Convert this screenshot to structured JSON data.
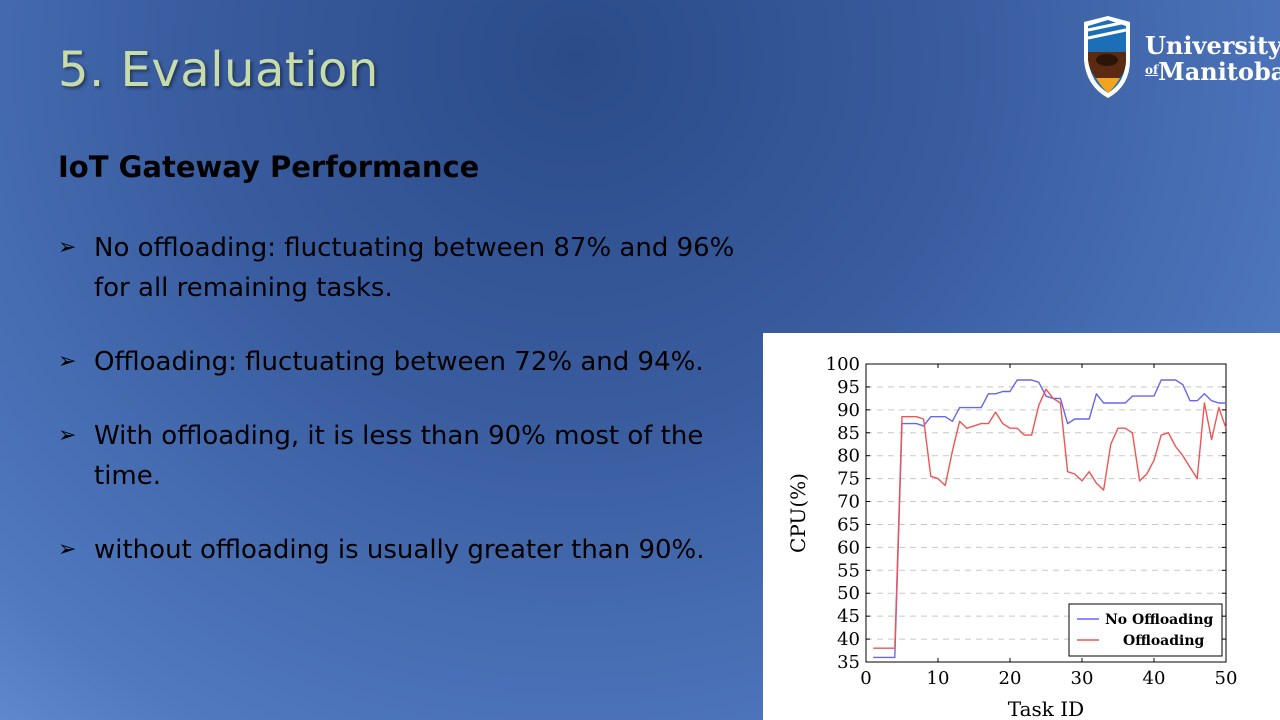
{
  "slide": {
    "title": "5. Evaluation",
    "subtitle": "IoT Gateway Performance",
    "bullets": [
      "No offloading: fluctuating between 87% and 96% for all remaining tasks.",
      "Offloading: fluctuating between 72% and 94%.",
      "With offloading, it is less than 90% most of the time.",
      "without offloading is usually greater than 90%."
    ],
    "bullet_icon": "arrow-right-icon"
  },
  "logo": {
    "line1": "University",
    "of": "of",
    "line2": "Manitoba",
    "icon": "bison-shield-icon"
  },
  "chart_data": {
    "type": "line",
    "title": "",
    "xlabel": "Task ID",
    "ylabel": "CPU(%)",
    "xlim": [
      0,
      50
    ],
    "ylim": [
      35,
      100
    ],
    "xticks": [
      0,
      10,
      20,
      30,
      40,
      50
    ],
    "yticks": [
      35,
      40,
      45,
      50,
      55,
      60,
      65,
      70,
      75,
      80,
      85,
      90,
      95,
      100
    ],
    "grid": "horizontal-dashed",
    "legend_position": "bottom-right",
    "series": [
      {
        "name": "No Offloading",
        "color": "#6666ee",
        "points": [
          [
            1,
            36
          ],
          [
            2,
            36
          ],
          [
            3,
            36
          ],
          [
            4,
            36
          ],
          [
            5,
            87
          ],
          [
            6,
            87
          ],
          [
            7,
            87
          ],
          [
            8,
            86.5
          ],
          [
            9,
            88.5
          ],
          [
            10,
            88.5
          ],
          [
            11,
            88.5
          ],
          [
            12,
            87.5
          ],
          [
            13,
            90.5
          ],
          [
            14,
            90.5
          ],
          [
            15,
            90.5
          ],
          [
            16,
            90.5
          ],
          [
            17,
            93.5
          ],
          [
            18,
            93.5
          ],
          [
            19,
            94
          ],
          [
            20,
            94
          ],
          [
            21,
            96.5
          ],
          [
            22,
            96.5
          ],
          [
            23,
            96.5
          ],
          [
            24,
            96
          ],
          [
            25,
            93
          ],
          [
            26,
            92.5
          ],
          [
            27,
            92.5
          ],
          [
            28,
            87
          ],
          [
            29,
            88
          ],
          [
            30,
            88
          ],
          [
            31,
            88
          ],
          [
            32,
            93.5
          ],
          [
            33,
            91.5
          ],
          [
            34,
            91.5
          ],
          [
            35,
            91.5
          ],
          [
            36,
            91.5
          ],
          [
            37,
            93
          ],
          [
            38,
            93
          ],
          [
            39,
            93
          ],
          [
            40,
            93
          ],
          [
            41,
            96.5
          ],
          [
            42,
            96.5
          ],
          [
            43,
            96.5
          ],
          [
            44,
            95.5
          ],
          [
            45,
            92
          ],
          [
            46,
            92
          ],
          [
            47,
            93.5
          ],
          [
            48,
            92
          ],
          [
            49,
            91.5
          ],
          [
            50,
            91.5
          ]
        ]
      },
      {
        "name": "Offloading",
        "color": "#ee5555",
        "points": [
          [
            1,
            38
          ],
          [
            2,
            38
          ],
          [
            3,
            38
          ],
          [
            4,
            38
          ],
          [
            5,
            88.5
          ],
          [
            6,
            88.5
          ],
          [
            7,
            88.5
          ],
          [
            8,
            88
          ],
          [
            9,
            75.5
          ],
          [
            10,
            75
          ],
          [
            11,
            73.5
          ],
          [
            12,
            81
          ],
          [
            13,
            87.5
          ],
          [
            14,
            86
          ],
          [
            15,
            86.5
          ],
          [
            16,
            87
          ],
          [
            17,
            87
          ],
          [
            18,
            89.5
          ],
          [
            19,
            87
          ],
          [
            20,
            86
          ],
          [
            21,
            86
          ],
          [
            22,
            84.5
          ],
          [
            23,
            84.5
          ],
          [
            24,
            91
          ],
          [
            25,
            94.5
          ],
          [
            26,
            92.5
          ],
          [
            27,
            91.5
          ],
          [
            28,
            76.5
          ],
          [
            29,
            76
          ],
          [
            30,
            74.5
          ],
          [
            31,
            76.5
          ],
          [
            32,
            74
          ],
          [
            33,
            72.5
          ],
          [
            34,
            82.5
          ],
          [
            35,
            86
          ],
          [
            36,
            86
          ],
          [
            37,
            85
          ],
          [
            38,
            74.5
          ],
          [
            39,
            76
          ],
          [
            40,
            79
          ],
          [
            41,
            84.5
          ],
          [
            42,
            85
          ],
          [
            43,
            82
          ],
          [
            44,
            80
          ],
          [
            45,
            77.5
          ],
          [
            46,
            75
          ],
          [
            47,
            91.5
          ],
          [
            48,
            83.5
          ],
          [
            49,
            90.5
          ],
          [
            50,
            86
          ]
        ]
      }
    ]
  }
}
